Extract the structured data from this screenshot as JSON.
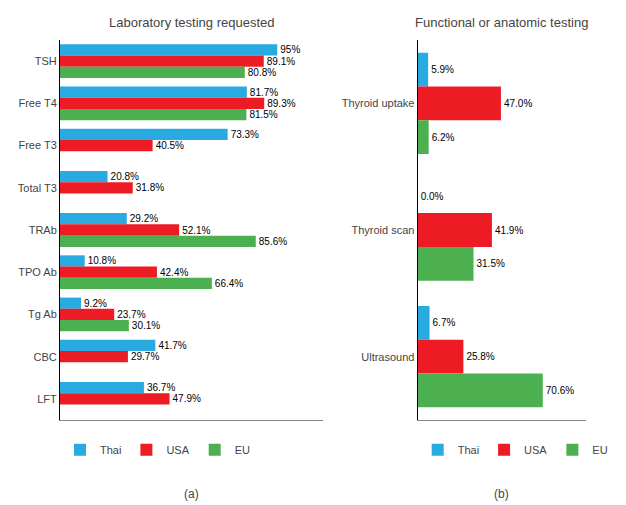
{
  "chart_data": [
    {
      "type": "bar",
      "orientation": "horizontal",
      "title": "Laboratory testing requested",
      "categories": [
        "TSH",
        "Free T4",
        "Free T3",
        "Total T3",
        "TRAb",
        "TPO Ab",
        "Tg Ab",
        "CBC",
        "LFT"
      ],
      "series": [
        {
          "name": "Thai",
          "color": "#29ABE2",
          "values": [
            95.0,
            81.7,
            73.3,
            20.8,
            29.2,
            10.8,
            9.2,
            41.7,
            36.7
          ],
          "value_labels": [
            "95%",
            "81.7%",
            "73.3%",
            "20.8%",
            "29.2%",
            "10.8%",
            "9.2%",
            "41.7%",
            "36.7%"
          ]
        },
        {
          "name": "USA",
          "color": "#ED1C24",
          "values": [
            89.1,
            89.3,
            40.5,
            31.8,
            52.1,
            42.4,
            23.7,
            29.7,
            47.9
          ],
          "value_labels": [
            "89.1%",
            "89.3%",
            "40.5%",
            "31.8%",
            "52.1%",
            "42.4%",
            "23.7%",
            "29.7%",
            "47.9%"
          ]
        },
        {
          "name": "EU",
          "color": "#4CAF50",
          "values": [
            80.8,
            81.5,
            null,
            null,
            85.6,
            66.4,
            30.1,
            null,
            null
          ],
          "value_labels": [
            "80.8%",
            "81.5%",
            null,
            null,
            "85.6%",
            "66.4%",
            "30.1%",
            null,
            null
          ]
        }
      ],
      "xlim": [
        0,
        115
      ],
      "data_labels": true,
      "tick_labels": "y",
      "grid": false,
      "legend": "bottom",
      "annotations": [
        "(a)"
      ]
    },
    {
      "type": "bar",
      "orientation": "horizontal",
      "title": "Functional or anatomic testing",
      "categories": [
        "Thyroid uptake",
        "Thyroid scan",
        "Ultrasound"
      ],
      "series": [
        {
          "name": "Thai",
          "color": "#29ABE2",
          "values": [
            5.9,
            0.0,
            6.7
          ],
          "value_labels": [
            "5.9%",
            "0.0%",
            "6.7%"
          ]
        },
        {
          "name": "USA",
          "color": "#ED1C24",
          "values": [
            47.0,
            41.9,
            25.8
          ],
          "value_labels": [
            "47.0%",
            "41.9%",
            "25.8%"
          ]
        },
        {
          "name": "EU",
          "color": "#4CAF50",
          "values": [
            6.2,
            31.5,
            70.6
          ],
          "value_labels": [
            "6.2%",
            "31.5%",
            "70.6%"
          ]
        }
      ],
      "xlim": [
        0,
        95
      ],
      "data_labels": true,
      "tick_labels": "y",
      "grid": false,
      "legend": "bottom",
      "annotations": [
        "(b)"
      ]
    }
  ]
}
